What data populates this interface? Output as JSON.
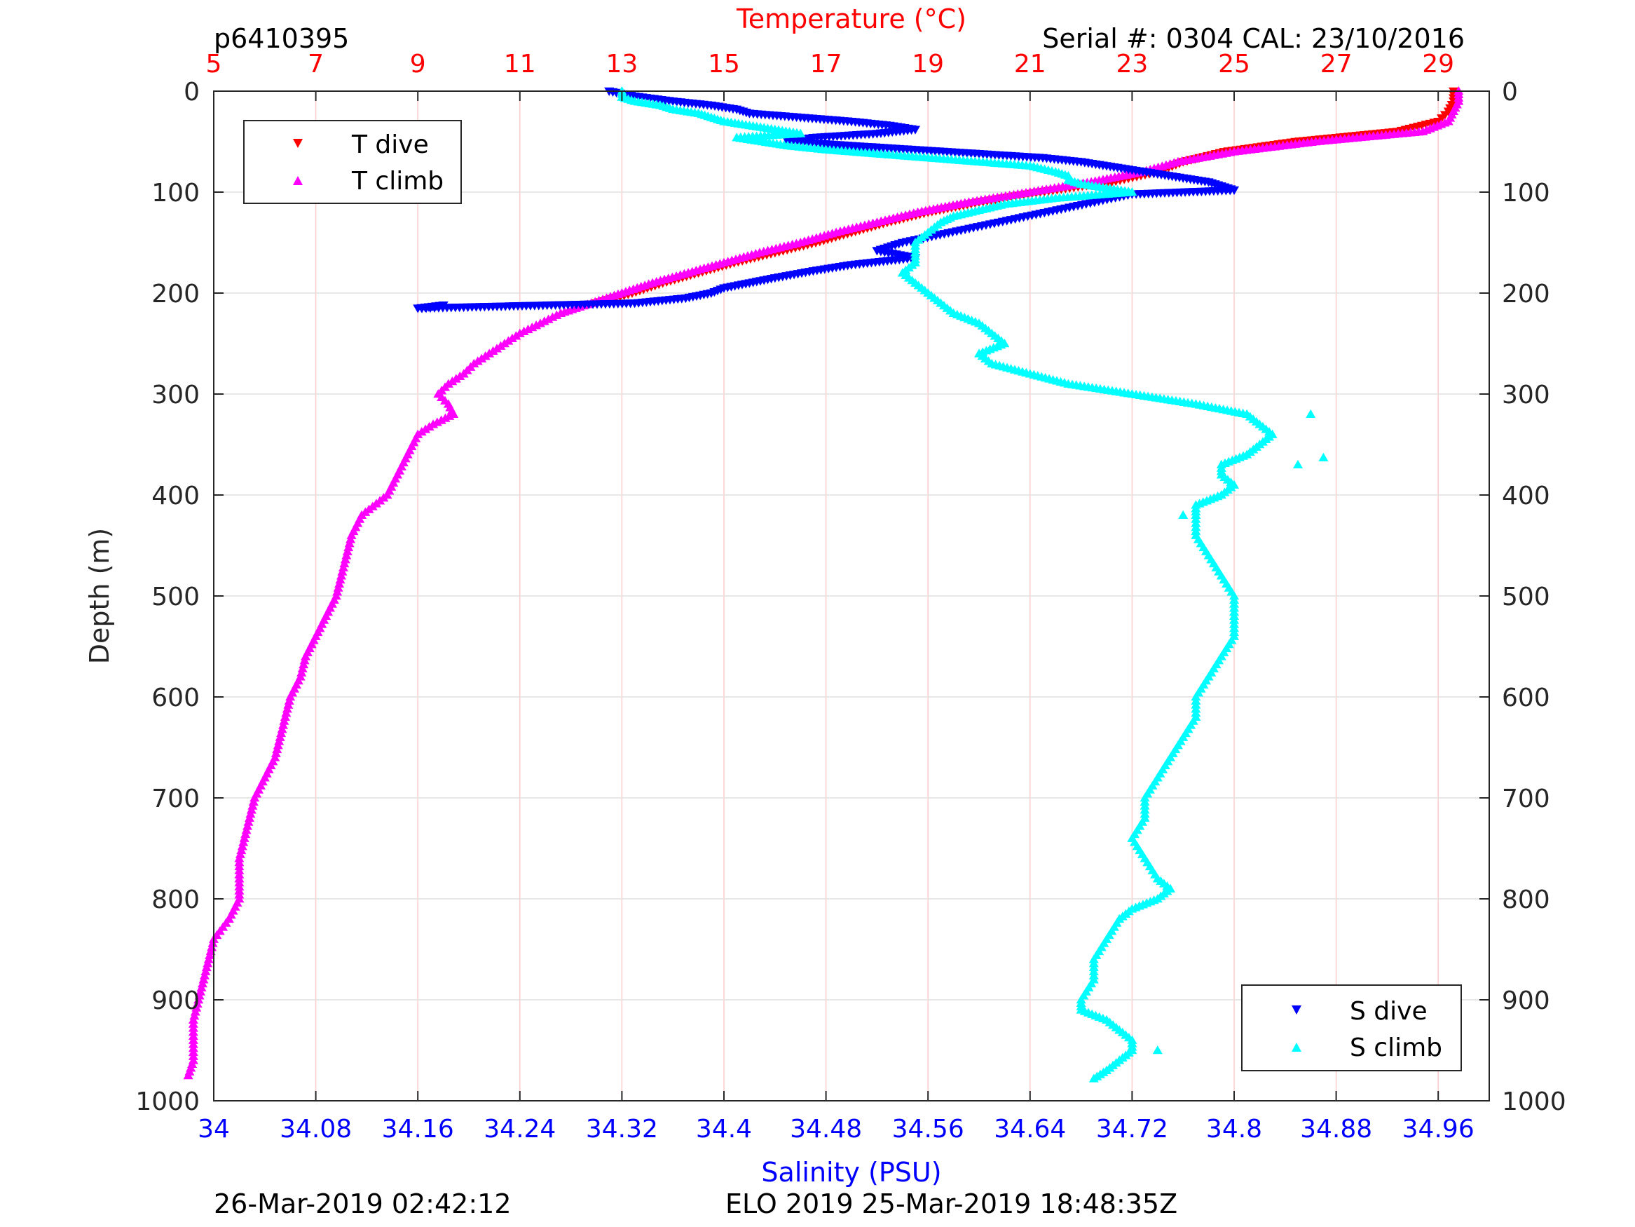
{
  "header": {
    "profile_id": "p6410395",
    "serial": "Serial #: 0304  CAL: 23/10/2016"
  },
  "footer": {
    "left": "26-Mar-2019 02:42:12",
    "center": "ELO 2019 25-Mar-2019 18:48:35Z"
  },
  "colors": {
    "t_dive": "#ff0000",
    "t_climb": "#ff00ff",
    "s_dive": "#0000ff",
    "s_climb": "#00ffff",
    "temperature_axis": "#ff0000",
    "salinity_axis": "#0000ff",
    "grid": "#e0e0e0",
    "temp_grid": "#ffcccc"
  },
  "chart_data": {
    "type": "scatter",
    "temperature_axis": {
      "label": "Temperature (°C)",
      "range": [
        5,
        30
      ],
      "ticks": [
        "5",
        "7",
        "9",
        "11",
        "13",
        "15",
        "17",
        "19",
        "21",
        "23",
        "25",
        "27",
        "29"
      ]
    },
    "salinity_axis": {
      "label": "Salinity (PSU)",
      "range": [
        34,
        35
      ],
      "ticks": [
        "34",
        "34.08",
        "34.16",
        "34.24",
        "34.32",
        "34.4",
        "34.48",
        "34.56",
        "34.64",
        "34.72",
        "34.8",
        "34.88",
        "34.96"
      ]
    },
    "depth_axis": {
      "label": "Depth (m)",
      "range": [
        0,
        1000
      ],
      "reversed": true,
      "ticks": [
        "0",
        "100",
        "200",
        "300",
        "400",
        "500",
        "600",
        "700",
        "800",
        "900",
        "1000"
      ]
    },
    "grid": true,
    "legends": [
      {
        "placement": "top-left",
        "entries": [
          "T dive",
          "T climb"
        ]
      },
      {
        "placement": "bottom-right",
        "entries": [
          "S dive",
          "S climb"
        ]
      }
    ],
    "series": [
      {
        "name": "T dive",
        "axis": "temperature",
        "marker": "triangle-down",
        "depth": [
          0,
          10,
          20,
          30,
          40,
          50,
          60,
          70,
          80,
          90,
          100,
          110,
          120,
          130,
          140,
          150,
          160,
          170,
          180,
          190,
          200,
          210
        ],
        "values": [
          29.3,
          29.3,
          29.2,
          29.0,
          28.2,
          26.2,
          24.8,
          24.0,
          23.5,
          22.6,
          21.2,
          20.0,
          19.0,
          18.2,
          17.5,
          16.8,
          16.0,
          15.2,
          14.5,
          13.8,
          13.2,
          12.5
        ]
      },
      {
        "name": "T climb",
        "axis": "temperature",
        "marker": "triangle-up",
        "depth": [
          0,
          10,
          20,
          30,
          40,
          50,
          60,
          70,
          80,
          90,
          100,
          110,
          120,
          130,
          140,
          150,
          160,
          170,
          180,
          190,
          200,
          210,
          220,
          230,
          240,
          250,
          260,
          270,
          280,
          290,
          300,
          310,
          320,
          330,
          340,
          360,
          380,
          400,
          420,
          440,
          460,
          480,
          500,
          520,
          540,
          560,
          580,
          600,
          620,
          640,
          660,
          680,
          700,
          720,
          740,
          760,
          780,
          800,
          820,
          840,
          860,
          880,
          900,
          920,
          940,
          960,
          975
        ],
        "values": [
          29.4,
          29.4,
          29.3,
          29.2,
          28.7,
          26.6,
          25.0,
          23.9,
          23.2,
          22.2,
          21.0,
          19.8,
          18.8,
          18.0,
          17.2,
          16.5,
          15.7,
          15.0,
          14.3,
          13.6,
          13.0,
          12.4,
          11.8,
          11.4,
          11.0,
          10.7,
          10.4,
          10.1,
          9.9,
          9.6,
          9.4,
          9.6,
          9.7,
          9.3,
          9.0,
          8.8,
          8.6,
          8.4,
          7.9,
          7.7,
          7.6,
          7.5,
          7.4,
          7.2,
          7.0,
          6.8,
          6.7,
          6.5,
          6.4,
          6.3,
          6.2,
          6.0,
          5.8,
          5.7,
          5.6,
          5.5,
          5.5,
          5.5,
          5.3,
          5.0,
          4.9,
          4.8,
          4.7,
          4.6,
          4.6,
          4.6,
          4.5
        ]
      },
      {
        "name": "S dive",
        "axis": "salinity",
        "marker": "triangle-down",
        "depth": [
          0,
          5,
          10,
          14,
          18,
          22,
          26,
          30,
          34,
          38,
          42,
          46,
          50,
          54,
          58,
          62,
          66,
          70,
          74,
          78,
          82,
          86,
          90,
          94,
          98,
          102,
          150,
          158,
          165,
          172,
          178,
          185,
          190,
          195,
          200,
          205,
          210,
          215,
          212
        ],
        "values": [
          34.31,
          34.33,
          34.36,
          34.39,
          34.41,
          34.42,
          34.46,
          34.5,
          34.53,
          34.55,
          34.52,
          34.47,
          34.45,
          34.5,
          34.55,
          34.6,
          34.65,
          34.68,
          34.7,
          34.72,
          34.74,
          34.76,
          34.78,
          34.79,
          34.8,
          34.72,
          34.54,
          34.52,
          34.55,
          34.5,
          34.47,
          34.44,
          34.42,
          34.4,
          34.39,
          34.37,
          34.33,
          34.16,
          34.18
        ]
      },
      {
        "name": "S climb",
        "axis": "salinity",
        "marker": "triangle-up",
        "depth": [
          0,
          6,
          10,
          14,
          18,
          22,
          26,
          30,
          34,
          38,
          42,
          46,
          50,
          54,
          58,
          62,
          66,
          70,
          74,
          80,
          84,
          88,
          92,
          96,
          100,
          106,
          112,
          118,
          124,
          130,
          140,
          150,
          160,
          170,
          180,
          190,
          200,
          210,
          220,
          230,
          240,
          250,
          260,
          270,
          280,
          290,
          300,
          310,
          320,
          330,
          340,
          350,
          360,
          370,
          380,
          390,
          400,
          410,
          420,
          440,
          460,
          480,
          500,
          520,
          540,
          560,
          580,
          600,
          620,
          640,
          660,
          680,
          700,
          720,
          740,
          760,
          780,
          790,
          800,
          810,
          820,
          840,
          860,
          880,
          900,
          910,
          920,
          930,
          940,
          950,
          960,
          970,
          978
        ],
        "values": [
          34.32,
          34.32,
          34.33,
          34.35,
          34.36,
          34.38,
          34.39,
          34.4,
          34.42,
          34.44,
          34.46,
          34.41,
          34.43,
          34.45,
          34.48,
          34.52,
          34.56,
          34.6,
          34.64,
          34.66,
          34.67,
          34.67,
          34.68,
          34.7,
          34.72,
          34.66,
          34.62,
          34.6,
          34.58,
          34.57,
          34.56,
          34.55,
          34.55,
          34.55,
          34.54,
          34.55,
          34.56,
          34.57,
          34.58,
          34.6,
          34.61,
          34.62,
          34.6,
          34.61,
          34.64,
          34.67,
          34.72,
          34.77,
          34.81,
          34.82,
          34.83,
          34.82,
          34.81,
          34.79,
          34.79,
          34.8,
          34.79,
          34.77,
          34.77,
          34.77,
          34.78,
          34.79,
          34.8,
          34.8,
          34.8,
          34.79,
          34.78,
          34.77,
          34.77,
          34.76,
          34.75,
          34.74,
          34.73,
          34.73,
          34.72,
          34.73,
          34.74,
          34.75,
          34.74,
          34.72,
          34.71,
          34.7,
          34.69,
          34.69,
          34.68,
          34.68,
          34.7,
          34.71,
          34.72,
          34.72,
          34.71,
          34.7,
          34.69
        ]
      }
    ],
    "outliers": [
      {
        "series": "S climb",
        "depth": [
          320,
          363,
          370,
          420
        ],
        "values": [
          34.86,
          34.87,
          34.85,
          34.76
        ]
      },
      {
        "series": "S climb",
        "depth": [
          950
        ],
        "values": [
          34.74
        ]
      }
    ]
  }
}
